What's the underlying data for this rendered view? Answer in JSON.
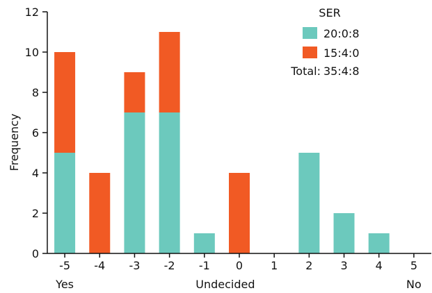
{
  "chart_data": {
    "type": "bar",
    "stacked": true,
    "categories": [
      "-5",
      "-4",
      "-3",
      "-2",
      "-1",
      "0",
      "1",
      "2",
      "3",
      "4",
      "5"
    ],
    "series": [
      {
        "name": "20:0:8",
        "color": "#6cc9bd",
        "values": [
          5,
          0,
          7,
          7,
          1,
          0,
          0,
          5,
          2,
          1,
          0
        ]
      },
      {
        "name": "15:4:0",
        "color": "#f15a24",
        "values": [
          5,
          4,
          2,
          4,
          0,
          4,
          0,
          0,
          0,
          0,
          0
        ]
      }
    ],
    "ylabel": "Frequency",
    "ylim": [
      0,
      12
    ],
    "yticks": [
      0,
      2,
      4,
      6,
      8,
      10,
      12
    ],
    "x_annotations": {
      "left": "Yes",
      "center": "Undecided",
      "right": "No"
    },
    "legend": {
      "title": "SER",
      "total_label": "Total:",
      "total_value": "35:4:8",
      "position": "top-right"
    },
    "grid": false
  }
}
